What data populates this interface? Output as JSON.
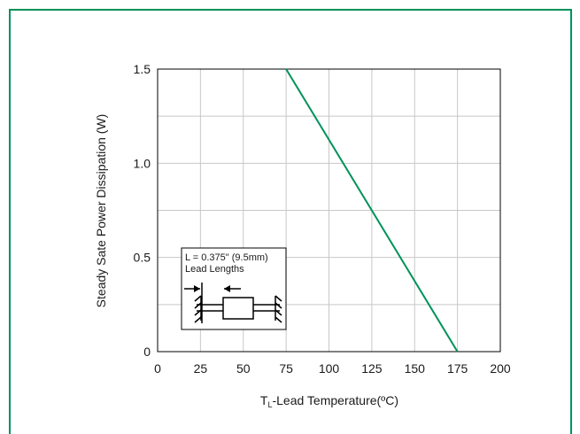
{
  "chart_data": {
    "type": "line",
    "xlabel_main": "T",
    "xlabel_sub": "L",
    "xlabel_rest": "-Lead Temperature(ºC)",
    "ylabel": "Steady Sate Power Dissipation (W)",
    "xlim": [
      0,
      200
    ],
    "ylim": [
      0,
      1.5
    ],
    "x_ticks": [
      0,
      25,
      50,
      75,
      100,
      125,
      150,
      175,
      200
    ],
    "x_tick_labels": [
      "0",
      "25",
      "50",
      "75",
      "100",
      "125",
      "150",
      "175",
      "200"
    ],
    "y_ticks": [
      0,
      0.5,
      1.0,
      1.5
    ],
    "y_tick_labels": [
      "0",
      "0.5",
      "1.0",
      "1.5"
    ],
    "grid": true,
    "series": [
      {
        "x": [
          75,
          175
        ],
        "y": [
          1.5,
          0
        ],
        "color": "#00925a"
      }
    ]
  },
  "inset": {
    "line1": "L = 0.375\" (9.5mm)",
    "line2": "Lead Lengths"
  },
  "colors": {
    "frame": "#00925a",
    "grid": "#c8c8c8",
    "series": "#00925a"
  }
}
